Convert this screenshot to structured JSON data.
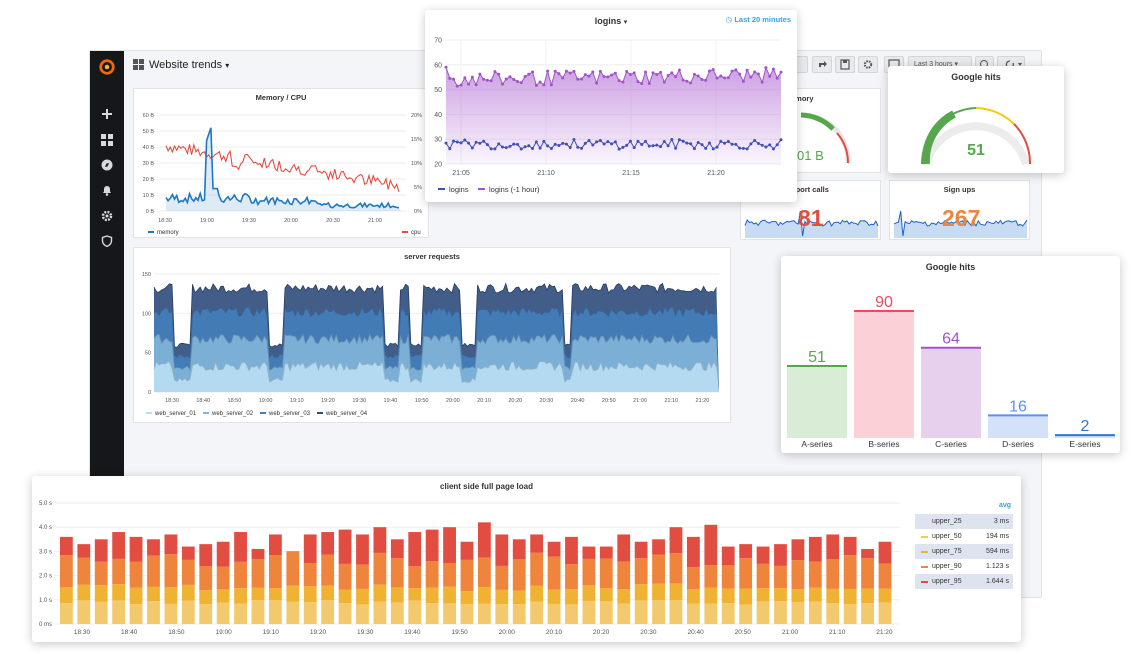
{
  "dashboard": {
    "title": "Website trends",
    "caret": "▾"
  },
  "toolbar": {
    "time_range": "Last 3 hours"
  },
  "memory_cpu": {
    "title": "Memory / CPU",
    "y_left_ticks": [
      "60 B",
      "50 B",
      "40 B",
      "30 B",
      "20 B",
      "10 B",
      "0 B"
    ],
    "y_right_ticks": [
      "20%",
      "15%",
      "10%",
      "5%",
      "0%"
    ],
    "x_ticks": [
      "18:30",
      "19:00",
      "19:30",
      "20:00",
      "20:30",
      "21:00"
    ],
    "legend": [
      "memory",
      "cpu"
    ],
    "colors": {
      "memory": "#1f78c1",
      "cpu": "#e24d42"
    }
  },
  "server_requests": {
    "title": "server requests",
    "y_ticks": [
      "150",
      "100",
      "50",
      "0"
    ],
    "x_ticks": [
      "18:30",
      "18:40",
      "18:50",
      "19:00",
      "19:10",
      "19:20",
      "19:30",
      "19:40",
      "19:50",
      "20:00",
      "20:10",
      "20:20",
      "20:30",
      "20:40",
      "20:50",
      "21:00",
      "21:10",
      "21:20"
    ],
    "legend": [
      "web_server_01",
      "web_server_02",
      "web_server_03",
      "web_server_04"
    ],
    "colors": [
      "#badff4",
      "#82b5d8",
      "#447ebc",
      "#2f4b7c"
    ]
  },
  "memory_partial": {
    "title_fragment": "emory",
    "value": "01 B"
  },
  "support_calls": {
    "title_fragment": "pport calls",
    "value": "81"
  },
  "sign_ups": {
    "title": "Sign ups",
    "value": "267"
  },
  "logins": {
    "title": "logins",
    "time_range": "Last 20 minutes",
    "y_ticks": [
      "70",
      "60",
      "50",
      "40",
      "30",
      "20"
    ],
    "x_ticks": [
      "21:05",
      "21:10",
      "21:15",
      "21:20"
    ],
    "legend": [
      "logins",
      "logins (-1 hour)"
    ],
    "colors": {
      "logins": "#3f51b5",
      "logins_prev": "#a352cc"
    }
  },
  "google_gauge": {
    "title": "Google hits",
    "value": "51",
    "chart_data": {
      "type": "gauge",
      "value": 51
    }
  },
  "google_bars": {
    "title": "Google hits",
    "chart_data": {
      "type": "bar",
      "categories": [
        "A-series",
        "B-series",
        "C-series",
        "D-series",
        "E-series"
      ],
      "values": [
        51,
        90,
        64,
        16,
        2
      ],
      "colors": [
        "#56a64b",
        "#f2495c",
        "#a352cc",
        "#5794f2",
        "#3274d9"
      ],
      "fills": [
        "#d9ecd6",
        "#fbd0d6",
        "#e6d0ee",
        "#d3e2f9",
        "#d0dff6"
      ]
    }
  },
  "page_load": {
    "title": "client side full page load",
    "y_ticks": [
      "5.0 s",
      "4.0 s",
      "3.0 s",
      "2.0 s",
      "1.0 s",
      "0 ms"
    ],
    "x_ticks": [
      "18:30",
      "18:40",
      "18:50",
      "19:00",
      "19:10",
      "19:20",
      "19:30",
      "19:40",
      "19:50",
      "20:00",
      "20:10",
      "20:20",
      "20:30",
      "20:40",
      "20:50",
      "21:00",
      "21:10",
      "21:20"
    ],
    "legend_header": "avg",
    "legend": [
      {
        "name": "upper_25",
        "value": "3 ms",
        "color": "#fce2a4"
      },
      {
        "name": "upper_50",
        "value": "194 ms",
        "color": "#f2c96d"
      },
      {
        "name": "upper_75",
        "value": "594 ms",
        "color": "#f0b233"
      },
      {
        "name": "upper_90",
        "value": "1.123 s",
        "color": "#ef843c"
      },
      {
        "name": "upper_95",
        "value": "1.644 s",
        "color": "#e24d42"
      }
    ]
  }
}
